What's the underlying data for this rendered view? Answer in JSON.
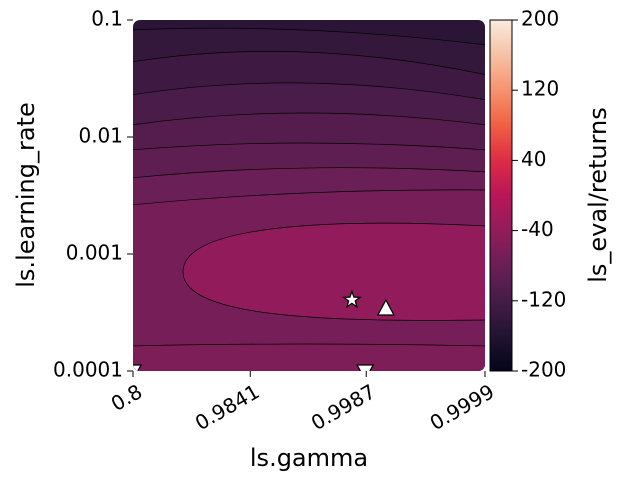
{
  "chart_data": {
    "type": "contour",
    "xlabel": "ls.gamma",
    "ylabel": "ls.learning_rate",
    "colorbar_label": "ls_eval/returns",
    "xscale": "log-one-minus",
    "yscale": "log",
    "xlim": [
      0.8,
      0.9999
    ],
    "xticks": [
      0.8,
      0.9841,
      0.9987,
      0.9999
    ],
    "ylim": [
      0.0001,
      0.1
    ],
    "yticks": [
      0.1,
      0.01,
      0.001,
      0.0001
    ],
    "clim": [
      -200,
      200
    ],
    "cticks": [
      200,
      120,
      40,
      -40,
      -120,
      -200
    ],
    "colormap": "rocket",
    "band_values": [
      -150,
      -140,
      -128,
      -116,
      -104,
      -92,
      -80,
      -68,
      -40,
      -60
    ],
    "markers": [
      {
        "shape": "star",
        "color": "#ffffff",
        "x": [
          0.99823
        ],
        "y": [
          0.000405
        ]
      },
      {
        "shape": "triangle-up",
        "color": "#ffffff",
        "x": [
          0.99915
        ],
        "y": [
          0.000339
        ]
      },
      {
        "shape": "triangle-down",
        "color": "#ffffff",
        "x": [
          0.8,
          0.99867
        ],
        "y": [
          0.0001,
          0.0001
        ]
      }
    ]
  }
}
